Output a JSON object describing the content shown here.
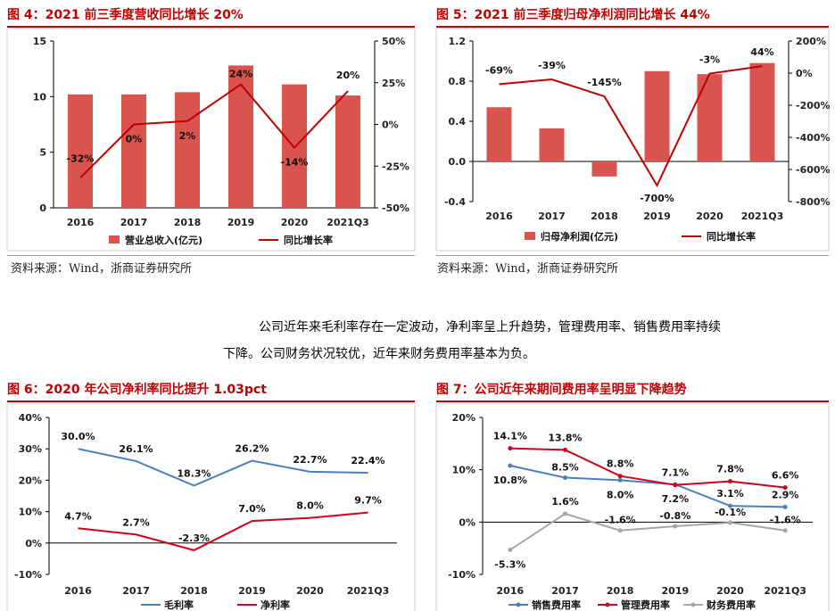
{
  "fig4": {
    "title": "图 4：2021 前三季度营收同比增长 20%",
    "source": "资料来源：Wind，浙商证券研究所",
    "chart_data": {
      "type": "bar",
      "categories": [
        "2016",
        "2017",
        "2018",
        "2019",
        "2020",
        "2021Q3"
      ],
      "left_axis": {
        "min": 0,
        "max": 15,
        "ticks": [
          "0",
          "5",
          "10",
          "15"
        ]
      },
      "right_axis": {
        "min": -50,
        "max": 50,
        "ticks": [
          "-50%",
          "-25%",
          "0%",
          "25%",
          "50%"
        ]
      },
      "series": [
        {
          "name": "营业总收入(亿元)",
          "kind": "bar",
          "axis": "left",
          "values": [
            10.2,
            10.2,
            10.4,
            12.8,
            11.1,
            10.1
          ],
          "color": "#d9534f"
        },
        {
          "name": "同比增长率",
          "kind": "line",
          "axis": "right",
          "values": [
            -32,
            0,
            2,
            24,
            -14,
            20
          ],
          "labels": [
            "-32%",
            "0%",
            "2%",
            "24%",
            "-14%",
            "20%"
          ],
          "color": "#c00000"
        }
      ]
    }
  },
  "fig5": {
    "title": "图 5：2021 前三季度归母净利润同比增长 44%",
    "source": "资料来源：Wind，浙商证券研究所",
    "chart_data": {
      "type": "bar",
      "categories": [
        "2016",
        "2017",
        "2018",
        "2019",
        "2020",
        "2021Q3"
      ],
      "left_axis": {
        "min": -0.4,
        "max": 1.2,
        "ticks": [
          "-0.4",
          "0.0",
          "0.4",
          "0.8",
          "1.2"
        ]
      },
      "right_axis": {
        "min": -800,
        "max": 200,
        "ticks": [
          "-800%",
          "-600%",
          "-400%",
          "-200%",
          "0%",
          "200%"
        ]
      },
      "series": [
        {
          "name": "归母净利润(亿元)",
          "kind": "bar",
          "axis": "left",
          "values": [
            0.54,
            0.33,
            -0.15,
            0.9,
            0.87,
            0.98
          ],
          "color": "#d9534f"
        },
        {
          "name": "同比增长率",
          "kind": "line",
          "axis": "right",
          "values": [
            -69,
            -39,
            -145,
            -700,
            -3,
            44
          ],
          "labels": [
            "-69%",
            "-39%",
            "-145%",
            "-700%",
            "-3%",
            "44%"
          ],
          "color": "#c00000"
        }
      ]
    }
  },
  "paragraph": {
    "line1": "公司近年来毛利率存在一定波动，净利率呈上升趋势，管理费用率、销售费用率持续",
    "line2": "下降。公司财务状况较优，近年来财务费用率基本为负。"
  },
  "fig6": {
    "title": "图 6：2020 年公司净利率同比提升 1.03pct",
    "chart_data": {
      "type": "line",
      "categories": [
        "2016",
        "2017",
        "2018",
        "2019",
        "2020",
        "2021Q3"
      ],
      "axis": {
        "min": -10,
        "max": 40,
        "ticks": [
          "-10%",
          "0%",
          "10%",
          "20%",
          "30%",
          "40%"
        ]
      },
      "series": [
        {
          "name": "毛利率",
          "values": [
            30.0,
            26.1,
            18.3,
            26.2,
            22.7,
            22.4
          ],
          "labels": [
            "30.0%",
            "26.1%",
            "18.3%",
            "26.2%",
            "22.7%",
            "22.4%"
          ],
          "color": "#4a7fc1"
        },
        {
          "name": "净利率",
          "values": [
            4.7,
            2.7,
            -2.3,
            7.0,
            8.0,
            9.7
          ],
          "labels": [
            "4.7%",
            "2.7%",
            "-2.3%",
            "7.0%",
            "8.0%",
            "9.7%"
          ],
          "color": "#d0021b"
        }
      ]
    }
  },
  "fig7": {
    "title": "图 7：公司近年来期间费用率呈明显下降趋势",
    "chart_data": {
      "type": "line",
      "categories": [
        "2016",
        "2017",
        "2018",
        "2019",
        "2020",
        "2021Q3"
      ],
      "axis": {
        "min": -10,
        "max": 20,
        "ticks": [
          "-10%",
          "0%",
          "10%",
          "20%"
        ]
      },
      "series": [
        {
          "name": "销售费用率",
          "values": [
            10.8,
            8.5,
            8.0,
            7.2,
            3.1,
            2.9
          ],
          "labels": [
            "10.8%",
            "8.5%",
            "8.0%",
            "7.2%",
            "3.1%",
            "2.9%"
          ],
          "color": "#4a7fc1"
        },
        {
          "name": "管理费用率",
          "values": [
            14.1,
            13.8,
            8.8,
            7.1,
            7.8,
            6.6
          ],
          "labels": [
            "14.1%",
            "13.8%",
            "8.8%",
            "7.1%",
            "7.8%",
            "6.6%"
          ],
          "color": "#d0021b"
        },
        {
          "name": "财务费用率",
          "values": [
            -5.3,
            1.6,
            -1.6,
            -0.8,
            -0.1,
            -1.6
          ],
          "labels": [
            "-5.3%",
            "1.6%",
            "-1.6%",
            "-0.8%",
            "-0.1%",
            "-1.6%"
          ],
          "color": "#a6a6a6"
        }
      ]
    }
  }
}
